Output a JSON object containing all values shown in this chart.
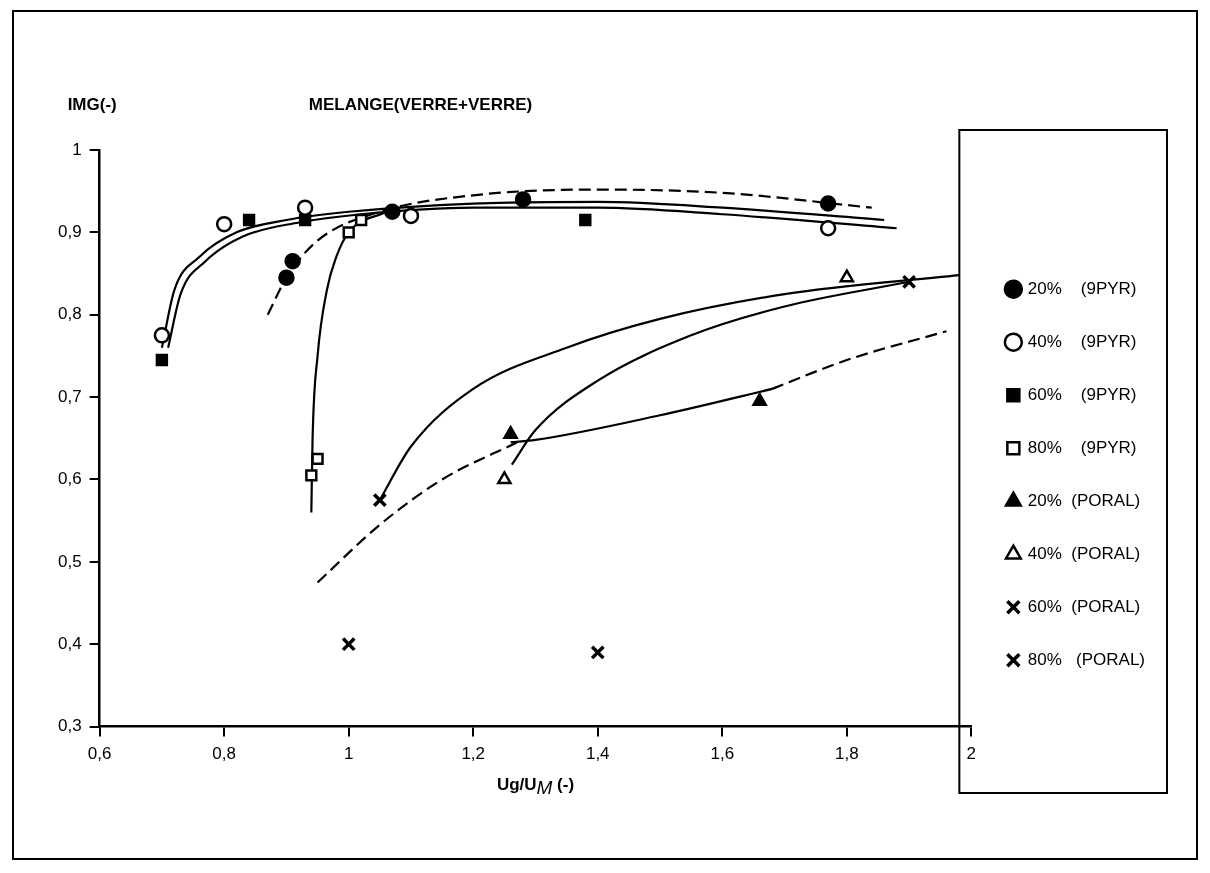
{
  "chart_data": {
    "type": "scatter",
    "title": "MELANGE(VERRE+VERRE)",
    "xlabel": "Ug/U$_{M}$ (-)",
    "ylabel": "IMG(-)",
    "xlim": [
      0.6,
      2
    ],
    "ylim": [
      0.3,
      1
    ],
    "xticks": [
      {
        "value": 0.6,
        "label": "0,6"
      },
      {
        "value": 0.8,
        "label": "0,8"
      },
      1,
      {
        "value": 1.2,
        "label": "1,2"
      },
      {
        "value": 1.4,
        "label": "1,4"
      },
      {
        "value": 1.6,
        "label": "1,6"
      },
      {
        "value": 1.8,
        "label": "1,8"
      },
      2
    ],
    "yticks": [
      {
        "value": 0.3,
        "label": "0,3"
      },
      {
        "value": 0.4,
        "label": "0,4"
      },
      {
        "value": 0.5,
        "label": "0,5"
      },
      {
        "value": 0.6,
        "label": "0,6"
      },
      {
        "value": 0.7,
        "label": "0,7"
      },
      {
        "value": 0.8,
        "label": "0,8"
      },
      {
        "value": 0.9,
        "label": "0,9"
      },
      1
    ],
    "legend": "right",
    "series": [
      {
        "name": "20%    (9PYR)",
        "color": "#000000",
        "marker": "circle",
        "x": [
          0.9,
          0.91,
          1.07,
          1.28,
          1.77
        ],
        "values": [
          0.845,
          0.865,
          0.925,
          0.94,
          0.935
        ]
      },
      {
        "name": "40%    (9PYR)",
        "color": "#ffffff",
        "marker": "circle",
        "x": [
          0.7,
          0.8,
          0.93,
          1.1,
          1.77
        ],
        "values": [
          0.775,
          0.91,
          0.93,
          0.92,
          0.905
        ]
      },
      {
        "name": "60%    (9PYR)",
        "color": "#000000",
        "marker": "square",
        "x": [
          0.7,
          0.84,
          0.93,
          1.38
        ],
        "values": [
          0.745,
          0.915,
          0.915,
          0.915
        ]
      },
      {
        "name": "80%    (9PYR)",
        "color": "#ffffff",
        "marker": "square",
        "x": [
          0.94,
          0.95,
          1.0,
          1.02
        ],
        "values": [
          0.605,
          0.625,
          0.9,
          0.915
        ]
      },
      {
        "name": "20%  (PORAL)",
        "color": "#000000",
        "marker": "triangle",
        "x": [
          1.26,
          1.66
        ],
        "values": [
          0.655,
          0.695
        ]
      },
      {
        "name": "40%  (PORAL)",
        "color": "#ffffff",
        "marker": "triangle",
        "x": [
          1.25,
          1.8
        ],
        "values": [
          0.6,
          0.845
        ]
      },
      {
        "name": "60%  (PORAL)",
        "color": "#000000",
        "marker": "cross",
        "x": [
          1.05,
          1.9
        ],
        "values": [
          0.575,
          0.84
        ]
      },
      {
        "name": "80%   (PORAL)",
        "color": "#000000",
        "marker": "cross",
        "x": [
          1.0,
          1.4
        ],
        "values": [
          0.4,
          0.39
        ]
      },
      {
        "type": "line",
        "color": "#000000",
        "marker": "none",
        "line_style": "solid",
        "x": [
          0.7,
          0.72,
          0.76,
          0.82,
          0.9,
          1.0,
          1.2,
          1.4,
          1.6,
          1.86
        ],
        "values": [
          0.76,
          0.83,
          0.87,
          0.9,
          0.915,
          0.925,
          0.935,
          0.937,
          0.93,
          0.915
        ]
      },
      {
        "type": "line",
        "color": "#000000",
        "marker": "none",
        "line_style": "solid",
        "x": [
          0.71,
          0.73,
          0.77,
          0.83,
          0.92,
          1.02,
          1.2,
          1.4,
          1.6,
          1.88
        ],
        "values": [
          0.76,
          0.825,
          0.865,
          0.895,
          0.912,
          0.922,
          0.93,
          0.93,
          0.922,
          0.905
        ]
      },
      {
        "type": "line",
        "color": "#000000",
        "marker": "none",
        "line_style": "dashed",
        "x": [
          0.87,
          0.9,
          0.95,
          1.05,
          1.2,
          1.4,
          1.6,
          1.84
        ],
        "values": [
          0.8,
          0.845,
          0.89,
          0.925,
          0.945,
          0.952,
          0.948,
          0.93
        ]
      },
      {
        "type": "line",
        "color": "#000000",
        "marker": "none",
        "line_style": "solid",
        "x": [
          0.94,
          0.942,
          0.95,
          0.965,
          0.98,
          1.0,
          1.06
        ],
        "values": [
          0.56,
          0.65,
          0.75,
          0.83,
          0.87,
          0.9,
          0.925
        ]
      },
      {
        "type": "line",
        "color": "#000000",
        "marker": "none",
        "line_style": "solid",
        "x": [
          1.05,
          1.1,
          1.2,
          1.35,
          1.5,
          1.7,
          1.98
        ],
        "values": [
          0.575,
          0.64,
          0.71,
          0.76,
          0.795,
          0.825,
          0.848
        ]
      },
      {
        "type": "line",
        "color": "#000000",
        "marker": "none",
        "line_style": "solid",
        "x": [
          1.262,
          1.3,
          1.4,
          1.55,
          1.7,
          1.9
        ],
        "values": [
          0.618,
          0.66,
          0.72,
          0.775,
          0.81,
          0.84
        ]
      },
      {
        "type": "line",
        "color": "#000000",
        "marker": "none",
        "line_style": "solid",
        "x": [
          1.26,
          1.3,
          1.5,
          1.68
        ],
        "values": [
          0.645,
          0.648,
          0.678,
          0.71
        ]
      },
      {
        "type": "line",
        "color": "#000000",
        "marker": "none",
        "line_style": "dashed",
        "x": [
          0.95,
          1.05,
          1.15,
          1.27
        ],
        "values": [
          0.475,
          0.545,
          0.6,
          0.645
        ]
      },
      {
        "type": "line",
        "color": "#000000",
        "marker": "none",
        "line_style": "dashed",
        "x": [
          1.68,
          1.8,
          1.96
        ],
        "values": [
          0.71,
          0.745,
          0.78
        ]
      }
    ]
  }
}
